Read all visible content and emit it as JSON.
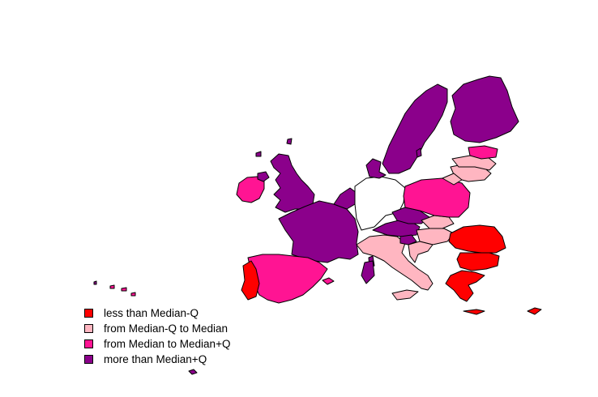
{
  "legend": {
    "items": [
      {
        "label": "less than Median-Q",
        "color": "#ff0000"
      },
      {
        "label": "from Median-Q to Median",
        "color": "#ffb6c1"
      },
      {
        "label": "from Median to Median+Q",
        "color": "#ff1493"
      },
      {
        "label": "more than Median+Q",
        "color": "#8b008b"
      }
    ]
  },
  "colors": {
    "class1": "#ff0000",
    "class2": "#ffb6c1",
    "class3": "#ff1493",
    "class4": "#8b008b"
  }
}
